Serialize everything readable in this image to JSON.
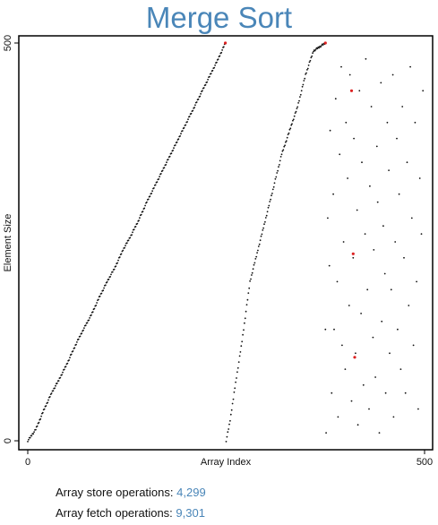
{
  "title": "Merge Sort",
  "stats": {
    "store_label": "Array store operations:",
    "store_value": "4,299",
    "fetch_label": "Array fetch operations:",
    "fetch_value": "9,301"
  },
  "colors": {
    "title": "#4a86b8",
    "point": "#111111",
    "highlight": "#dd2222",
    "value": "#4a86b8"
  },
  "chart_data": {
    "type": "scatter",
    "title": "Merge Sort",
    "xlabel": "Array Index",
    "ylabel": "Element Size",
    "xlim": [
      0,
      500
    ],
    "ylim": [
      0,
      500
    ],
    "xticks": [
      0,
      500
    ],
    "yticks": [
      0,
      500
    ],
    "grid": false,
    "series": [
      {
        "description": "first merged run",
        "x": [
          0,
          10,
          20,
          30,
          40,
          50,
          60,
          70,
          80,
          90,
          100,
          110,
          120,
          130,
          140,
          150,
          160,
          170,
          180,
          190,
          200,
          210,
          220,
          230,
          240,
          249
        ],
        "y": [
          0,
          14,
          38,
          60,
          78,
          98,
          120,
          140,
          158,
          180,
          200,
          218,
          240,
          258,
          278,
          300,
          320,
          340,
          360,
          380,
          400,
          420,
          440,
          460,
          480,
          500
        ]
      },
      {
        "description": "second merged run",
        "x": [
          250,
          255,
          260,
          270,
          280,
          290,
          300,
          310,
          320,
          330,
          340,
          350,
          360,
          375
        ],
        "y": [
          0,
          25,
          60,
          125,
          200,
          240,
          280,
          320,
          360,
          390,
          420,
          460,
          490,
          500
        ]
      },
      {
        "description": "unsorted remainder",
        "x": [
          375,
          376,
          378,
          380,
          381,
          383,
          385,
          386,
          388,
          390,
          391,
          393,
          395,
          396,
          398,
          400,
          401,
          403,
          405,
          406,
          408,
          410,
          411,
          413,
          415,
          416,
          418,
          420,
          421,
          423,
          425,
          426,
          428,
          430,
          431,
          433,
          435,
          436,
          438,
          440,
          441,
          443,
          445,
          446,
          448,
          450,
          451,
          453,
          455,
          456,
          458,
          460,
          461,
          463,
          465,
          466,
          468,
          470,
          472,
          474,
          476,
          478,
          480,
          482,
          484,
          486,
          488,
          490,
          492,
          494,
          496,
          498
        ],
        "y": [
          140,
          10,
          280,
          220,
          390,
          60,
          310,
          140,
          430,
          200,
          30,
          360,
          470,
          120,
          250,
          90,
          400,
          330,
          170,
          460,
          50,
          230,
          380,
          110,
          290,
          20,
          440,
          160,
          350,
          70,
          260,
          480,
          190,
          40,
          320,
          420,
          130,
          240,
          80,
          370,
          300,
          10,
          450,
          150,
          270,
          210,
          60,
          400,
          340,
          110,
          190,
          460,
          30,
          250,
          380,
          140,
          310,
          90,
          420,
          230,
          60,
          350,
          170,
          470,
          280,
          120,
          400,
          200,
          40,
          330,
          260,
          440
        ]
      },
      {
        "description": "highlighted elements",
        "x": [
          249,
          375,
          408,
          410,
          412
        ],
        "y": [
          500,
          500,
          440,
          235,
          105
        ]
      }
    ]
  }
}
